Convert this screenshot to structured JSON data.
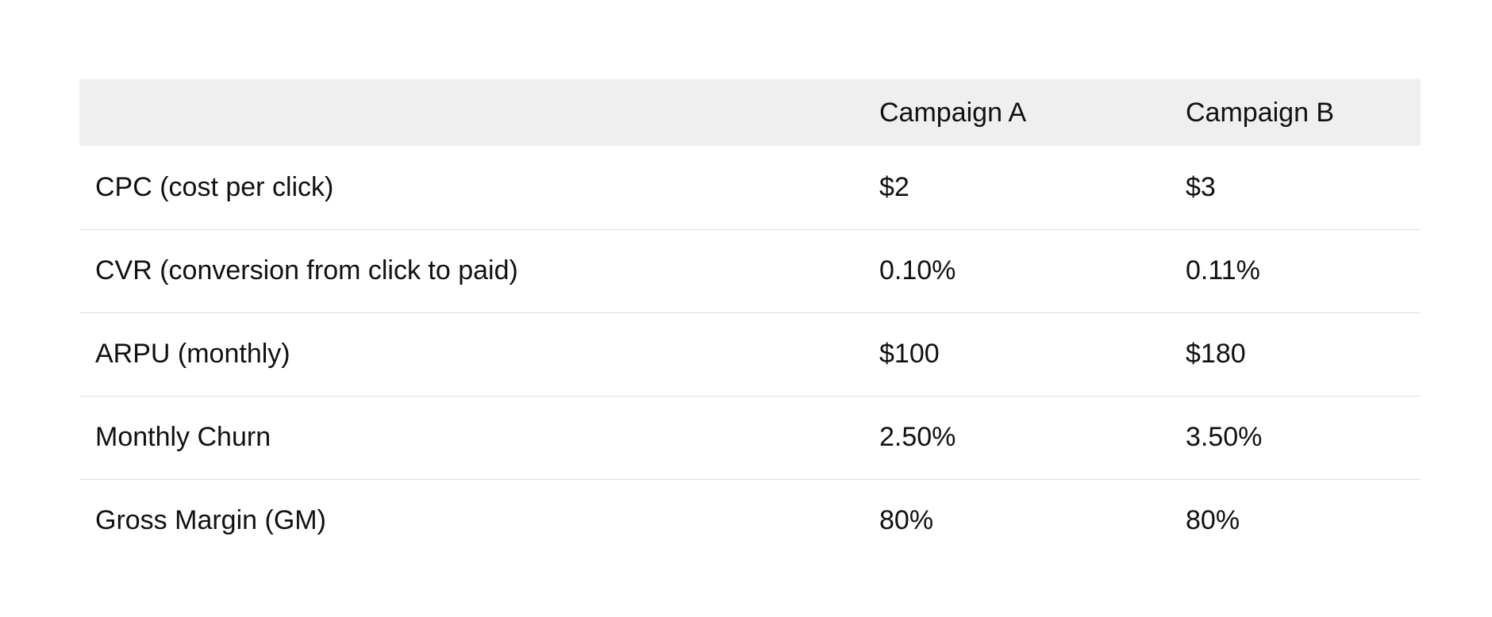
{
  "table": {
    "headers": [
      "",
      "Campaign A",
      "Campaign B"
    ],
    "rows": [
      {
        "metric": "CPC (cost per click)",
        "a": "$2",
        "b": "$3"
      },
      {
        "metric": "CVR (conversion from click to paid)",
        "a": "0.10%",
        "b": "0.11%"
      },
      {
        "metric": "ARPU (monthly)",
        "a": "$100",
        "b": "$180"
      },
      {
        "metric": "Monthly Churn",
        "a": "2.50%",
        "b": "3.50%"
      },
      {
        "metric": "Gross Margin (GM)",
        "a": "80%",
        "b": "80%"
      }
    ]
  },
  "colors": {
    "header_bg": "#efefef",
    "row_divider": "#dcdcdc",
    "text": "#111111"
  }
}
